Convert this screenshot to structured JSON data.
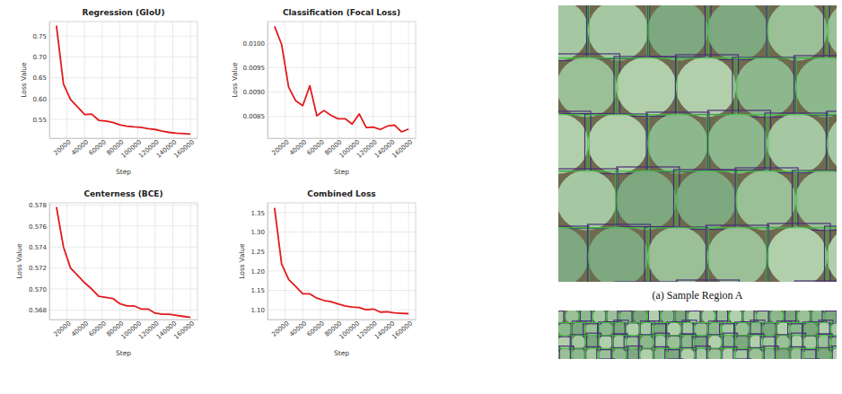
{
  "chart_data": [
    {
      "type": "line",
      "title": "Regression (GIoU)",
      "x_label": "Step",
      "y_label": "Loss Value",
      "color": "#e31a1c",
      "grid": true,
      "x": [
        8000,
        16000,
        24000,
        32000,
        40000,
        48000,
        56000,
        64000,
        72000,
        80000,
        88000,
        96000,
        104000,
        112000,
        120000,
        128000,
        136000,
        144000,
        152000,
        160000
      ],
      "values": [
        0.775,
        0.635,
        0.598,
        0.58,
        0.562,
        0.563,
        0.548,
        0.546,
        0.543,
        0.537,
        0.534,
        0.532,
        0.531,
        0.528,
        0.526,
        0.522,
        0.519,
        0.517,
        0.516,
        0.515
      ],
      "xlim": [
        0,
        168000
      ],
      "xticks": [
        20000,
        40000,
        60000,
        80000,
        100000,
        120000,
        140000,
        160000
      ],
      "ylim": [
        0.505,
        0.785
      ],
      "yticks": [
        0.55,
        {
          "value": 0.6,
          "label": "0.60"
        },
        0.65,
        {
          "value": 0.7,
          "label": "0.70"
        },
        0.75
      ]
    },
    {
      "type": "line",
      "title": "Classification (Focal Loss)",
      "x_label": "Step",
      "y_label": "Loss Value",
      "color": "#e31a1c",
      "grid": true,
      "x": [
        8000,
        16000,
        24000,
        32000,
        40000,
        48000,
        56000,
        64000,
        72000,
        80000,
        88000,
        96000,
        104000,
        112000,
        120000,
        128000,
        136000,
        144000,
        152000,
        160000
      ],
      "values": [
        0.01035,
        0.00998,
        0.0091,
        0.00882,
        0.00872,
        0.00913,
        0.00851,
        0.00862,
        0.00852,
        0.00845,
        0.00845,
        0.00834,
        0.00855,
        0.00827,
        0.00828,
        0.00823,
        0.0083,
        0.00832,
        0.00818,
        0.00824
      ],
      "xlim": [
        0,
        168000
      ],
      "xticks": [
        20000,
        40000,
        60000,
        80000,
        100000,
        120000,
        140000,
        160000
      ],
      "ylim": [
        0.00805,
        0.01045
      ],
      "yticks": [
        0.0085,
        {
          "value": 0.009,
          "label": "0.0090"
        },
        0.0095,
        {
          "value": 0.01,
          "label": "0.0100"
        }
      ]
    },
    {
      "type": "line",
      "title": "Centerness (BCE)",
      "x_label": "Step",
      "y_label": "Loss Value",
      "color": "#e31a1c",
      "grid": true,
      "x": [
        8000,
        16000,
        24000,
        32000,
        40000,
        48000,
        56000,
        64000,
        72000,
        80000,
        88000,
        96000,
        104000,
        112000,
        120000,
        128000,
        136000,
        144000,
        152000,
        160000
      ],
      "values": [
        0.5778,
        0.574,
        0.572,
        0.5713,
        0.5706,
        0.57,
        0.5693,
        0.5692,
        0.5691,
        0.5686,
        0.5684,
        0.5684,
        0.5681,
        0.5681,
        0.5677,
        0.5676,
        0.5676,
        0.5675,
        0.5674,
        0.5673
      ],
      "xlim": [
        0,
        168000
      ],
      "xticks": [
        20000,
        40000,
        60000,
        80000,
        100000,
        120000,
        140000,
        160000
      ],
      "ylim": [
        0.5671,
        0.5782
      ],
      "yticks": [
        0.568,
        {
          "value": 0.57,
          "label": "0.570"
        },
        0.572,
        0.574,
        0.576,
        0.578
      ]
    },
    {
      "type": "line",
      "title": "Combined Loss",
      "x_label": "Step",
      "y_label": "Loss Value",
      "color": "#e31a1c",
      "grid": true,
      "x": [
        8000,
        16000,
        24000,
        32000,
        40000,
        48000,
        56000,
        64000,
        72000,
        80000,
        88000,
        96000,
        104000,
        112000,
        120000,
        128000,
        136000,
        144000,
        152000,
        160000
      ],
      "values": [
        1.362,
        1.218,
        1.178,
        1.16,
        1.141,
        1.141,
        1.13,
        1.124,
        1.121,
        1.115,
        1.11,
        1.107,
        1.106,
        1.1,
        1.102,
        1.094,
        1.095,
        1.092,
        1.091,
        1.09
      ],
      "xlim": [
        0,
        168000
      ],
      "xticks": [
        20000,
        40000,
        60000,
        80000,
        100000,
        120000,
        140000,
        160000
      ],
      "ylim": [
        1.075,
        1.375
      ],
      "yticks": [
        {
          "value": 1.1,
          "label": "1.10"
        },
        1.15,
        {
          "value": 1.2,
          "label": "1.20"
        },
        1.25,
        {
          "value": 1.3,
          "label": "1.30"
        },
        1.35
      ]
    }
  ],
  "figure": {
    "caption": "(a) Sample Region A"
  }
}
